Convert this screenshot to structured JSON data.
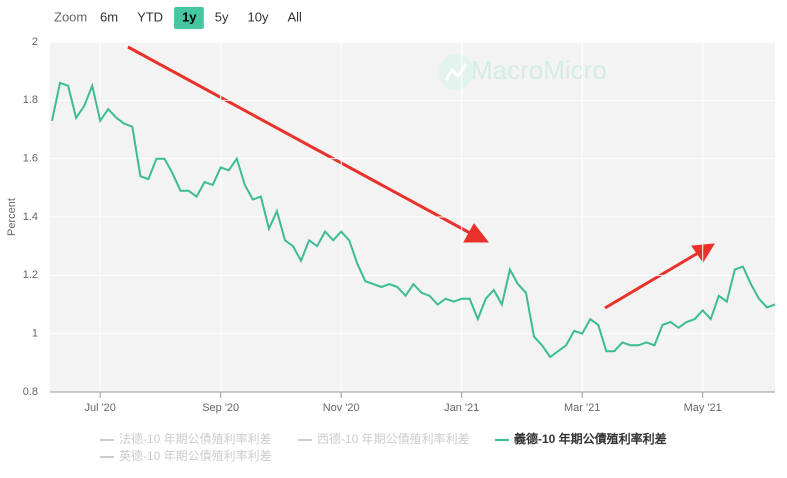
{
  "range_selector": {
    "label": "Zoom",
    "buttons": [
      "6m",
      "YTD",
      "1y",
      "5y",
      "10y",
      "All"
    ],
    "selected": 2
  },
  "watermark": "MacroMicro",
  "chart_data": {
    "type": "line",
    "y_label": "Percent",
    "categories": [
      null,
      null,
      null,
      null,
      null,
      null,
      "Jul '20",
      null,
      null,
      null,
      null,
      null,
      null,
      null,
      null,
      null,
      null,
      null,
      null,
      null,
      null,
      "Sep '20",
      null,
      null,
      null,
      null,
      null,
      null,
      null,
      null,
      null,
      null,
      null,
      null,
      null,
      null,
      "Nov '20",
      null,
      null,
      null,
      null,
      null,
      null,
      null,
      null,
      null,
      null,
      null,
      null,
      null,
      null,
      "Jan '21",
      null,
      null,
      null,
      null,
      null,
      null,
      null,
      null,
      null,
      null,
      null,
      null,
      null,
      null,
      "Mar '21",
      null,
      null,
      null,
      null,
      null,
      null,
      null,
      null,
      null,
      null,
      null,
      null,
      null,
      null,
      "May '21",
      null,
      null,
      null,
      null,
      null,
      null,
      null,
      null,
      null
    ],
    "ylim": [
      0.8,
      2
    ],
    "yticks": [
      0.8,
      1,
      1.2,
      1.4,
      1.6,
      1.8,
      2
    ],
    "grid": true,
    "series": [
      {
        "name": "法德-10 年期公債殖利率利差",
        "color": "#cccccc",
        "visible": false
      },
      {
        "name": "西德-10 年期公債殖利率利差",
        "color": "#cccccc",
        "visible": false
      },
      {
        "name": "義德-10 年期公債殖利率利差",
        "color": "#3dbb94",
        "visible": true,
        "values": [
          1.73,
          1.86,
          1.85,
          1.74,
          1.78,
          1.85,
          1.73,
          1.77,
          1.74,
          1.72,
          1.71,
          1.54,
          1.53,
          1.6,
          1.6,
          1.55,
          1.49,
          1.49,
          1.47,
          1.52,
          1.51,
          1.57,
          1.56,
          1.6,
          1.51,
          1.46,
          1.47,
          1.36,
          1.42,
          1.32,
          1.3,
          1.25,
          1.32,
          1.3,
          1.35,
          1.32,
          1.35,
          1.32,
          1.24,
          1.18,
          1.17,
          1.16,
          1.17,
          1.16,
          1.13,
          1.17,
          1.14,
          1.13,
          1.1,
          1.12,
          1.11,
          1.12,
          1.12,
          1.05,
          1.12,
          1.15,
          1.1,
          1.22,
          1.17,
          1.14,
          0.99,
          0.96,
          0.92,
          0.94,
          0.96,
          1.01,
          1,
          1.05,
          1.03,
          0.94,
          0.94,
          0.97,
          0.96,
          0.96,
          0.97,
          0.96,
          1.03,
          1.04,
          1.02,
          1.04,
          1.05,
          1.08,
          1.05,
          1.13,
          1.11,
          1.22,
          1.23,
          1.17,
          1.12,
          1.09,
          1.1
        ]
      },
      {
        "name": "英德-10 年期公債殖利率利差",
        "color": "#cccccc",
        "visible": false
      }
    ]
  }
}
